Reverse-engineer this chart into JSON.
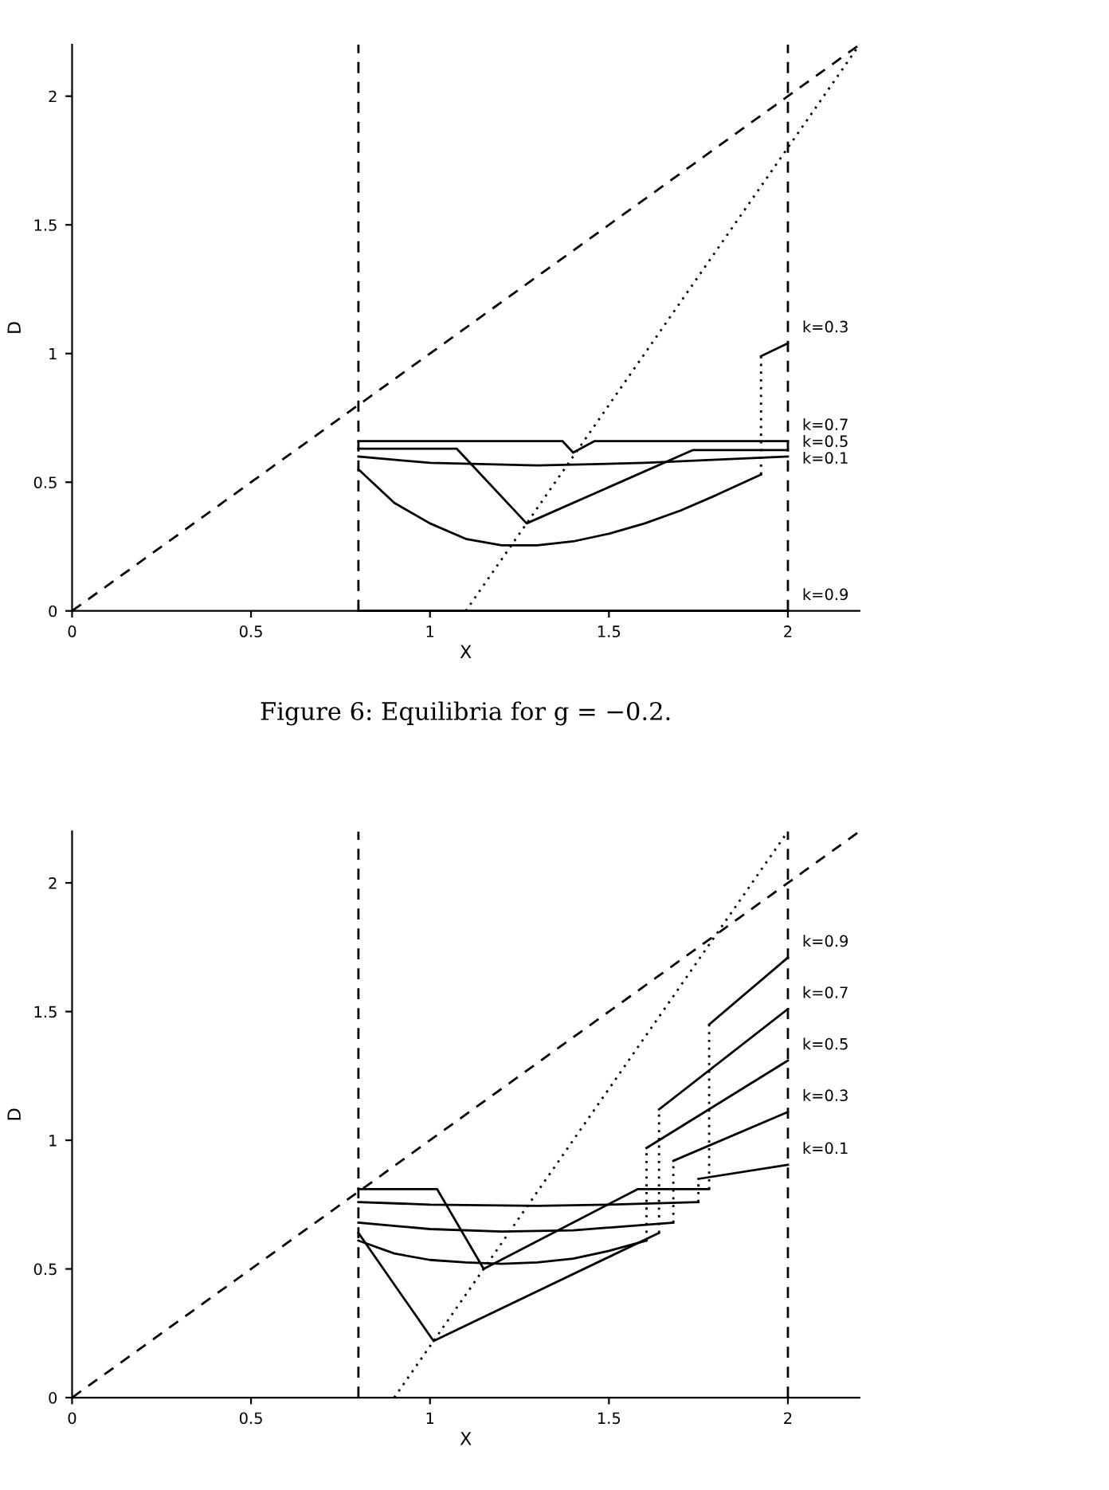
{
  "chart_data": [
    {
      "type": "line",
      "xlabel": "X",
      "ylabel": "D",
      "xlim": [
        0,
        2.2
      ],
      "ylim": [
        0,
        2.2
      ],
      "xticks": [
        0,
        0.5,
        1,
        1.5,
        2
      ],
      "yticks": [
        0,
        0.5,
        1,
        1.5,
        2
      ],
      "grid": false,
      "legend": "right",
      "marker": "none",
      "annotations": [
        "Figure 6: Equilibria for g = −0.2."
      ],
      "ref_lines": [
        {
          "axis": "x",
          "value": 0.8,
          "color": "#000000",
          "line_style": "dashed"
        },
        {
          "axis": "x",
          "value": 2,
          "color": "#000000",
          "line_style": "dashed"
        }
      ],
      "series": [
        {
          "x": [
            0,
            2.2
          ],
          "values": [
            0,
            2.2
          ],
          "color": "#000000",
          "line_style": "dashed"
        },
        {
          "x": [
            1.1,
            2.2
          ],
          "values": [
            0,
            2.2
          ],
          "color": "#000000",
          "line_style": "dotted"
        },
        {
          "x": [
            0.8,
            0.9,
            1.0,
            1.1,
            1.2,
            1.3,
            1.4,
            1.5,
            1.6,
            1.7,
            1.8,
            1.925
          ],
          "values": [
            0.55,
            0.42,
            0.34,
            0.28,
            0.255,
            0.255,
            0.27,
            0.3,
            0.34,
            0.39,
            0.45,
            0.53
          ],
          "color": "#000000",
          "line_style": "solid"
        },
        {
          "x": [
            1.925,
            1.925
          ],
          "values": [
            0.53,
            0.99
          ],
          "color": "#000000",
          "line_style": "dotted"
        },
        {
          "name": "k=0.3",
          "x": [
            1.925,
            2.0
          ],
          "values": [
            0.99,
            1.04
          ],
          "color": "#000000",
          "line_style": "solid"
        },
        {
          "name": "k=0.7",
          "x": [
            0.8,
            1.37,
            1.4,
            1.46,
            2.0
          ],
          "values": [
            0.66,
            0.66,
            0.615,
            0.66,
            0.66
          ],
          "color": "#000000",
          "line_style": "solid"
        },
        {
          "name": "k=0.5",
          "x": [
            0.8,
            1.075,
            1.27,
            1.735,
            2.0
          ],
          "values": [
            0.63,
            0.63,
            0.34,
            0.625,
            0.625
          ],
          "color": "#000000",
          "line_style": "solid"
        },
        {
          "name": "k=0.1",
          "x": [
            0.8,
            1.0,
            1.3,
            1.6,
            2.0
          ],
          "values": [
            0.6,
            0.575,
            0.565,
            0.575,
            0.6
          ],
          "color": "#000000",
          "line_style": "solid"
        },
        {
          "name": "k=0.9",
          "x": [
            0.8,
            2.0
          ],
          "values": [
            0,
            0
          ],
          "color": "#000000",
          "line_style": "solid"
        }
      ]
    },
    {
      "type": "line",
      "xlabel": "X",
      "ylabel": "D",
      "xlim": [
        0,
        2.2
      ],
      "ylim": [
        0,
        2.2
      ],
      "xticks": [
        0,
        0.5,
        1,
        1.5,
        2
      ],
      "yticks": [
        0,
        0.5,
        1,
        1.5,
        2
      ],
      "grid": false,
      "legend": "right",
      "marker": "none",
      "ref_lines": [
        {
          "axis": "x",
          "value": 0.8,
          "color": "#000000",
          "line_style": "dashed"
        },
        {
          "axis": "x",
          "value": 2,
          "color": "#000000",
          "line_style": "dashed"
        }
      ],
      "series": [
        {
          "x": [
            0,
            2.2
          ],
          "values": [
            0,
            2.2
          ],
          "color": "#000000",
          "line_style": "dashed"
        },
        {
          "x": [
            0.9,
            2.0
          ],
          "values": [
            0,
            2.2
          ],
          "color": "#000000",
          "line_style": "dotted"
        },
        {
          "x": [
            0.8,
            1.02,
            1.15,
            1.58,
            1.78
          ],
          "values": [
            0.81,
            0.81,
            0.5,
            0.81,
            0.81
          ],
          "color": "#000000",
          "line_style": "solid"
        },
        {
          "x": [
            1.78,
            1.78
          ],
          "values": [
            0.81,
            1.45
          ],
          "color": "#000000",
          "line_style": "dotted"
        },
        {
          "name": "k=0.9",
          "x": [
            1.78,
            2.0
          ],
          "values": [
            1.45,
            1.71
          ],
          "color": "#000000",
          "line_style": "solid"
        },
        {
          "x": [
            0.8,
            1.01,
            1.64
          ],
          "values": [
            0.64,
            0.22,
            0.64
          ],
          "color": "#000000",
          "line_style": "solid"
        },
        {
          "x": [
            1.64,
            1.64
          ],
          "values": [
            0.64,
            1.12
          ],
          "color": "#000000",
          "line_style": "dotted"
        },
        {
          "name": "k=0.7",
          "x": [
            1.64,
            2.0
          ],
          "values": [
            1.12,
            1.51
          ],
          "color": "#000000",
          "line_style": "solid"
        },
        {
          "x": [
            0.8,
            0.9,
            1.0,
            1.1,
            1.2,
            1.3,
            1.4,
            1.5,
            1.605
          ],
          "values": [
            0.61,
            0.56,
            0.535,
            0.525,
            0.52,
            0.525,
            0.54,
            0.57,
            0.61
          ],
          "color": "#000000",
          "line_style": "solid"
        },
        {
          "x": [
            1.605,
            1.605
          ],
          "values": [
            0.61,
            0.97
          ],
          "color": "#000000",
          "line_style": "dotted"
        },
        {
          "name": "k=0.5",
          "x": [
            1.605,
            2.0
          ],
          "values": [
            0.97,
            1.31
          ],
          "color": "#000000",
          "line_style": "solid"
        },
        {
          "x": [
            0.8,
            1.0,
            1.2,
            1.4,
            1.68
          ],
          "values": [
            0.68,
            0.655,
            0.645,
            0.65,
            0.68
          ],
          "color": "#000000",
          "line_style": "solid"
        },
        {
          "x": [
            1.68,
            1.68
          ],
          "values": [
            0.68,
            0.92
          ],
          "color": "#000000",
          "line_style": "dotted"
        },
        {
          "name": "k=0.3",
          "x": [
            1.68,
            2.0
          ],
          "values": [
            0.92,
            1.11
          ],
          "color": "#000000",
          "line_style": "solid"
        },
        {
          "x": [
            0.8,
            1.0,
            1.3,
            1.5,
            1.75
          ],
          "values": [
            0.76,
            0.75,
            0.745,
            0.75,
            0.76
          ],
          "color": "#000000",
          "line_style": "solid"
        },
        {
          "x": [
            1.75,
            1.75
          ],
          "values": [
            0.76,
            0.85
          ],
          "color": "#000000",
          "line_style": "dotted"
        },
        {
          "name": "k=0.1",
          "x": [
            1.75,
            2.0
          ],
          "values": [
            0.85,
            0.905
          ],
          "color": "#000000",
          "line_style": "solid"
        }
      ]
    }
  ]
}
